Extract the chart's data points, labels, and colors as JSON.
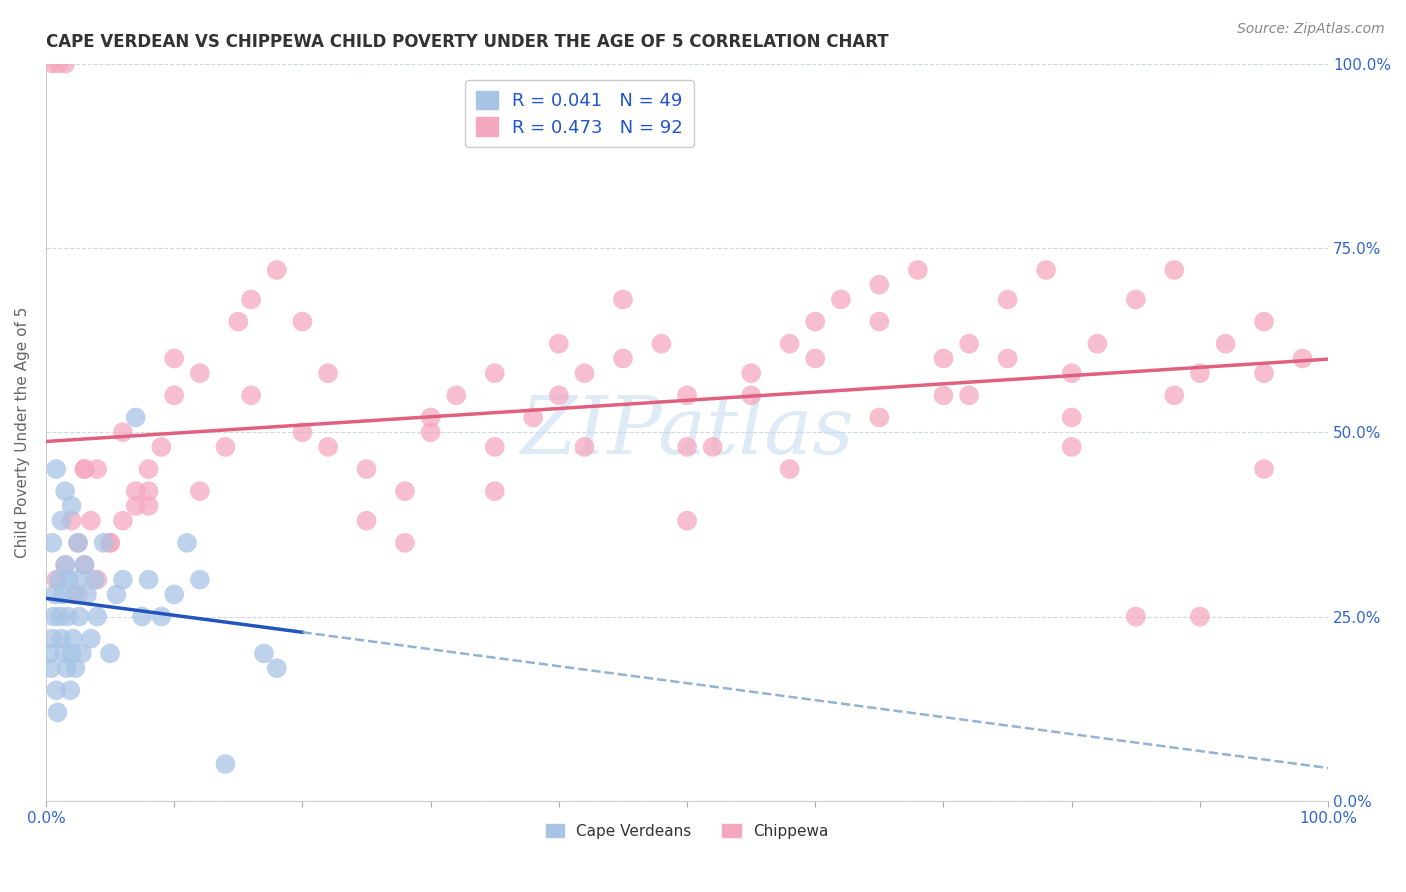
{
  "title": "CAPE VERDEAN VS CHIPPEWA CHILD POVERTY UNDER THE AGE OF 5 CORRELATION CHART",
  "source": "Source: ZipAtlas.com",
  "ylabel": "Child Poverty Under the Age of 5",
  "legend_label1": "R = 0.041   N = 49",
  "legend_label2": "R = 0.473   N = 92",
  "legend_xlabel1": "Cape Verdeans",
  "legend_xlabel2": "Chippewa",
  "cape_verdean_color": "#a8c4e5",
  "chippewa_color": "#f4a8c0",
  "regression_cv_color": "#2255bb",
  "regression_ch_color": "#e06080",
  "dashed_line_color": "#88aacc",
  "watermark_color": "#c8ddf0",
  "background_color": "#ffffff",
  "grid_color": "#d0d8e8",
  "ytick_label_color": "#3366cc",
  "xtick_label_color": "#3366cc",
  "title_color": "#333333",
  "source_color": "#888888",
  "ylabel_color": "#666666",
  "cv_x": [
    0.3,
    0.4,
    0.5,
    0.6,
    0.7,
    0.8,
    0.9,
    1.0,
    1.1,
    1.2,
    1.3,
    1.4,
    1.5,
    1.6,
    1.7,
    1.8,
    1.9,
    2.0,
    2.1,
    2.2,
    2.3,
    2.5,
    2.6,
    2.8,
    3.0,
    3.2,
    3.5,
    3.8,
    4.0,
    4.5,
    5.0,
    5.5,
    6.0,
    7.0,
    7.5,
    8.0,
    9.0,
    10.0,
    11.0,
    12.0,
    14.0,
    17.0,
    18.0,
    0.5,
    0.8,
    1.2,
    1.5,
    2.0,
    2.5
  ],
  "cv_y": [
    20,
    18,
    22,
    25,
    28,
    15,
    12,
    30,
    25,
    22,
    28,
    20,
    32,
    18,
    25,
    30,
    15,
    20,
    22,
    28,
    18,
    30,
    25,
    20,
    32,
    28,
    22,
    30,
    25,
    35,
    20,
    28,
    30,
    52,
    25,
    30,
    25,
    28,
    35,
    30,
    5,
    20,
    18,
    35,
    45,
    38,
    42,
    40,
    35
  ],
  "ch_x": [
    0.5,
    1.0,
    1.5,
    2.0,
    2.5,
    3.0,
    3.5,
    4.0,
    5.0,
    6.0,
    7.0,
    8.0,
    9.0,
    10.0,
    12.0,
    14.0,
    16.0,
    18.0,
    20.0,
    22.0,
    25.0,
    28.0,
    30.0,
    32.0,
    35.0,
    38.0,
    40.0,
    42.0,
    45.0,
    48.0,
    50.0,
    52.0,
    55.0,
    58.0,
    60.0,
    62.0,
    65.0,
    68.0,
    70.0,
    72.0,
    75.0,
    78.0,
    80.0,
    82.0,
    85.0,
    88.0,
    90.0,
    92.0,
    95.0,
    98.0,
    3.0,
    5.0,
    7.0,
    10.0,
    15.0,
    20.0,
    25.0,
    30.0,
    35.0,
    40.0,
    45.0,
    50.0,
    55.0,
    60.0,
    65.0,
    70.0,
    75.0,
    80.0,
    85.0,
    90.0,
    95.0,
    0.8,
    1.5,
    2.5,
    4.0,
    6.0,
    8.0,
    12.0,
    16.0,
    22.0,
    28.0,
    35.0,
    42.0,
    50.0,
    58.0,
    65.0,
    72.0,
    80.0,
    88.0,
    95.0,
    3.0,
    8.0
  ],
  "ch_y": [
    100,
    100,
    100,
    38,
    35,
    32,
    38,
    45,
    35,
    50,
    40,
    42,
    48,
    60,
    58,
    48,
    68,
    72,
    65,
    58,
    38,
    42,
    50,
    55,
    48,
    52,
    55,
    58,
    60,
    62,
    55,
    48,
    58,
    62,
    65,
    68,
    70,
    72,
    60,
    62,
    68,
    72,
    58,
    62,
    68,
    72,
    58,
    62,
    65,
    60,
    45,
    35,
    42,
    55,
    65,
    50,
    45,
    52,
    58,
    62,
    68,
    48,
    55,
    60,
    65,
    55,
    60,
    52,
    25,
    25,
    45,
    30,
    32,
    28,
    30,
    38,
    45,
    42,
    55,
    48,
    35,
    42,
    48,
    38,
    45,
    52,
    55,
    48,
    55,
    58,
    45,
    40
  ]
}
